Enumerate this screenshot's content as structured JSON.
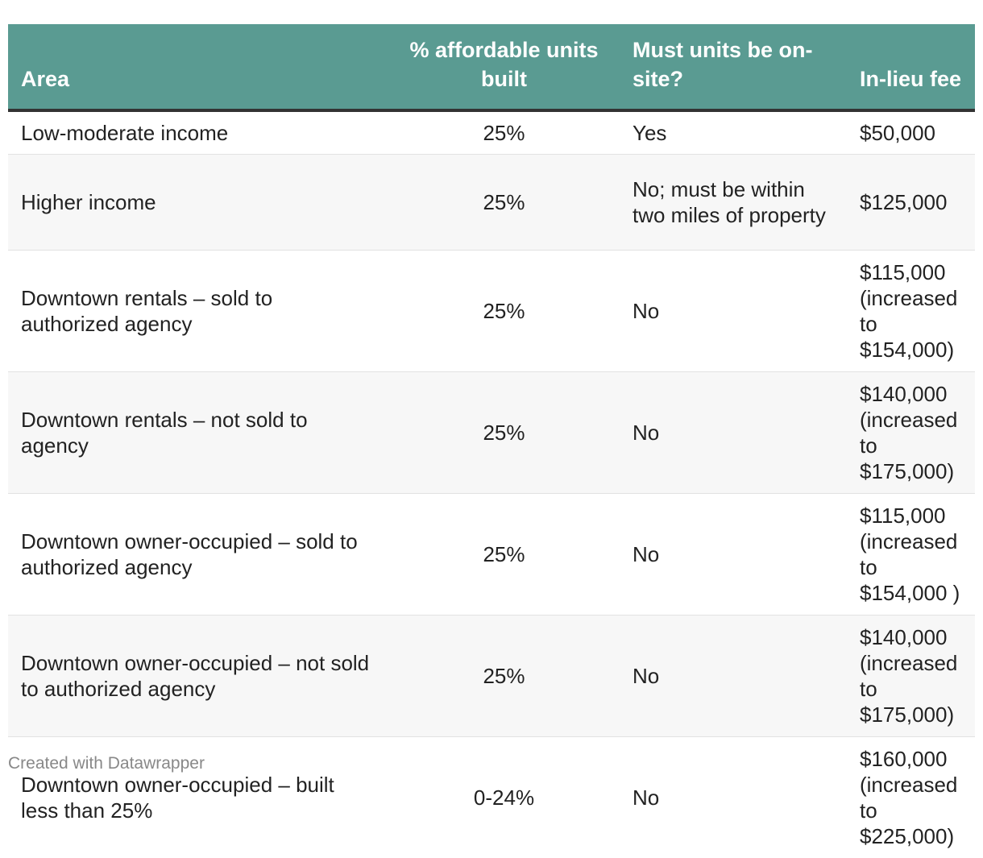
{
  "chart_data": {
    "type": "table",
    "columns": [
      "Area",
      "% affordable units built",
      "Must units be on-site?",
      "In-lieu fee"
    ],
    "rows": [
      [
        "Low-moderate income",
        "25%",
        "Yes",
        "$50,000"
      ],
      [
        "Higher income",
        "25%",
        "No; must be within two miles of property",
        "$125,000"
      ],
      [
        "Downtown rentals – sold to authorized agency",
        "25%",
        "No",
        "$115,000 (increased to $154,000)"
      ],
      [
        "Downtown rentals – not sold to agency",
        "25%",
        "No",
        "$140,000 (increased to $175,000)"
      ],
      [
        "Downtown owner-occupied – sold to authorized agency",
        "25%",
        "No",
        "$115,000 (increased to $154,000 )"
      ],
      [
        "Downtown owner-occupied – not sold to authorized agency",
        "25%",
        "No",
        "$140,000 (increased to $175,000)"
      ],
      [
        "Downtown owner-occupied – built less than 25%",
        "0-24%",
        "No",
        "$160,000 (increased to $225,000)"
      ]
    ]
  },
  "colors": {
    "header_bg": "#5a9b92",
    "header_text": "#ffffff",
    "header_rule": "#333333",
    "alt_row": "#f7f7f7"
  },
  "footer": {
    "credit": "Created with Datawrapper"
  }
}
